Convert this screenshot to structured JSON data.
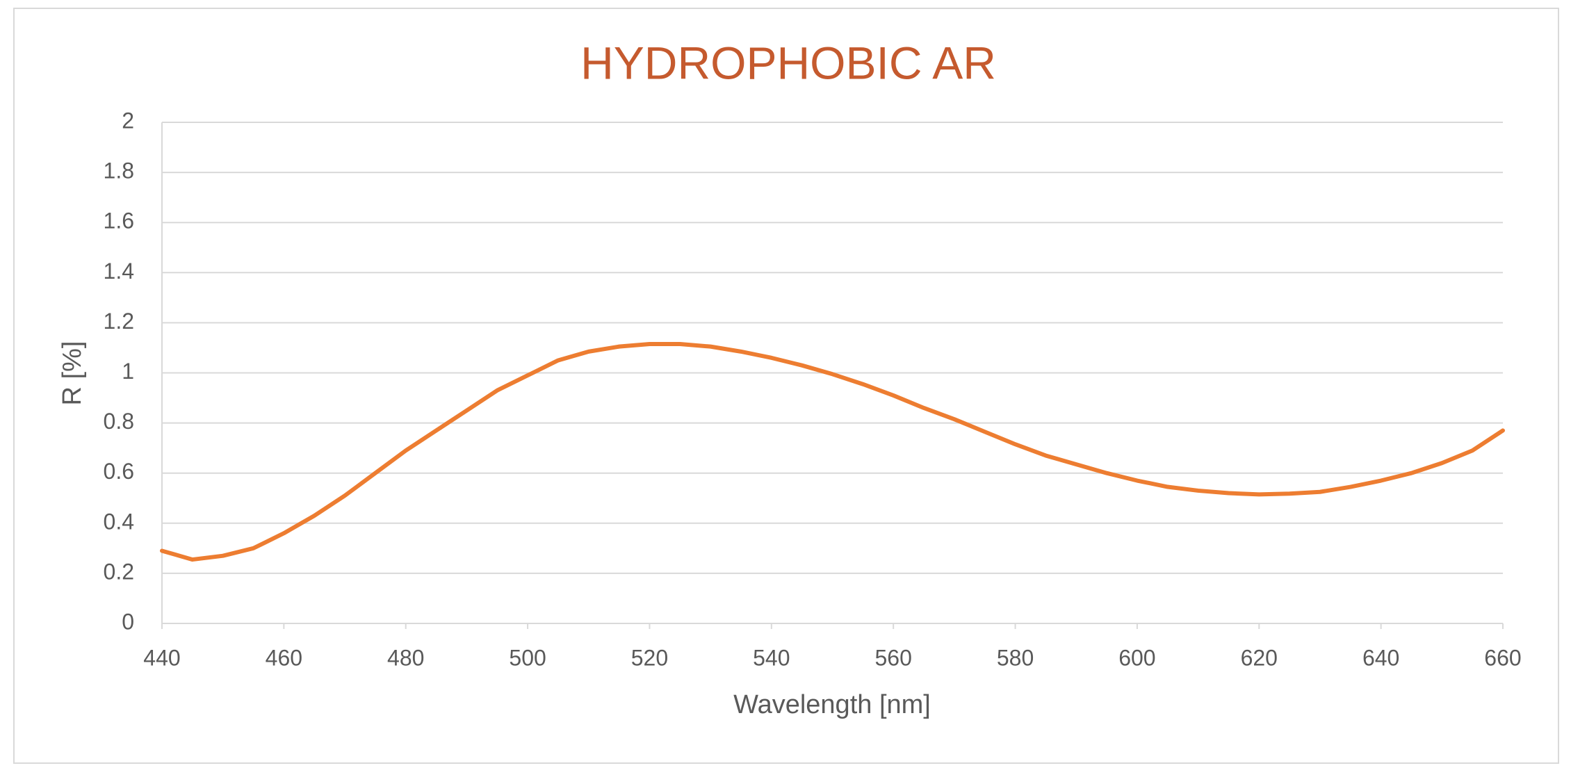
{
  "chart_data": {
    "type": "line",
    "title": "HYDROPHOBIC AR",
    "x_label": "Wavelength [nm]",
    "y_label": "R [%]",
    "title_color": "#c55a2e",
    "x": [
      440,
      445,
      450,
      455,
      460,
      465,
      470,
      475,
      480,
      485,
      490,
      495,
      500,
      505,
      510,
      515,
      520,
      525,
      530,
      535,
      540,
      545,
      550,
      555,
      560,
      565,
      570,
      575,
      580,
      585,
      590,
      595,
      600,
      605,
      610,
      615,
      620,
      625,
      630,
      635,
      640,
      645,
      650,
      655,
      660
    ],
    "series": [
      {
        "name": "R",
        "color": "#ed7d31",
        "values": [
          0.29,
          0.255,
          0.27,
          0.3,
          0.36,
          0.43,
          0.51,
          0.6,
          0.69,
          0.77,
          0.85,
          0.93,
          0.99,
          1.05,
          1.085,
          1.105,
          1.115,
          1.115,
          1.105,
          1.085,
          1.06,
          1.03,
          0.995,
          0.955,
          0.91,
          0.86,
          0.815,
          0.765,
          0.715,
          0.67,
          0.635,
          0.6,
          0.57,
          0.545,
          0.53,
          0.52,
          0.515,
          0.518,
          0.525,
          0.545,
          0.57,
          0.6,
          0.64,
          0.69,
          0.77
        ]
      }
    ],
    "xlim": [
      440,
      660
    ],
    "xticks": [
      440,
      460,
      480,
      500,
      520,
      540,
      560,
      580,
      600,
      620,
      640,
      660
    ],
    "ylim": [
      0,
      2
    ],
    "yticks": [
      0,
      0.2,
      0.4,
      0.6,
      0.8,
      1,
      1.2,
      1.4,
      1.6,
      1.8,
      2
    ],
    "grid": true,
    "legend": false
  }
}
